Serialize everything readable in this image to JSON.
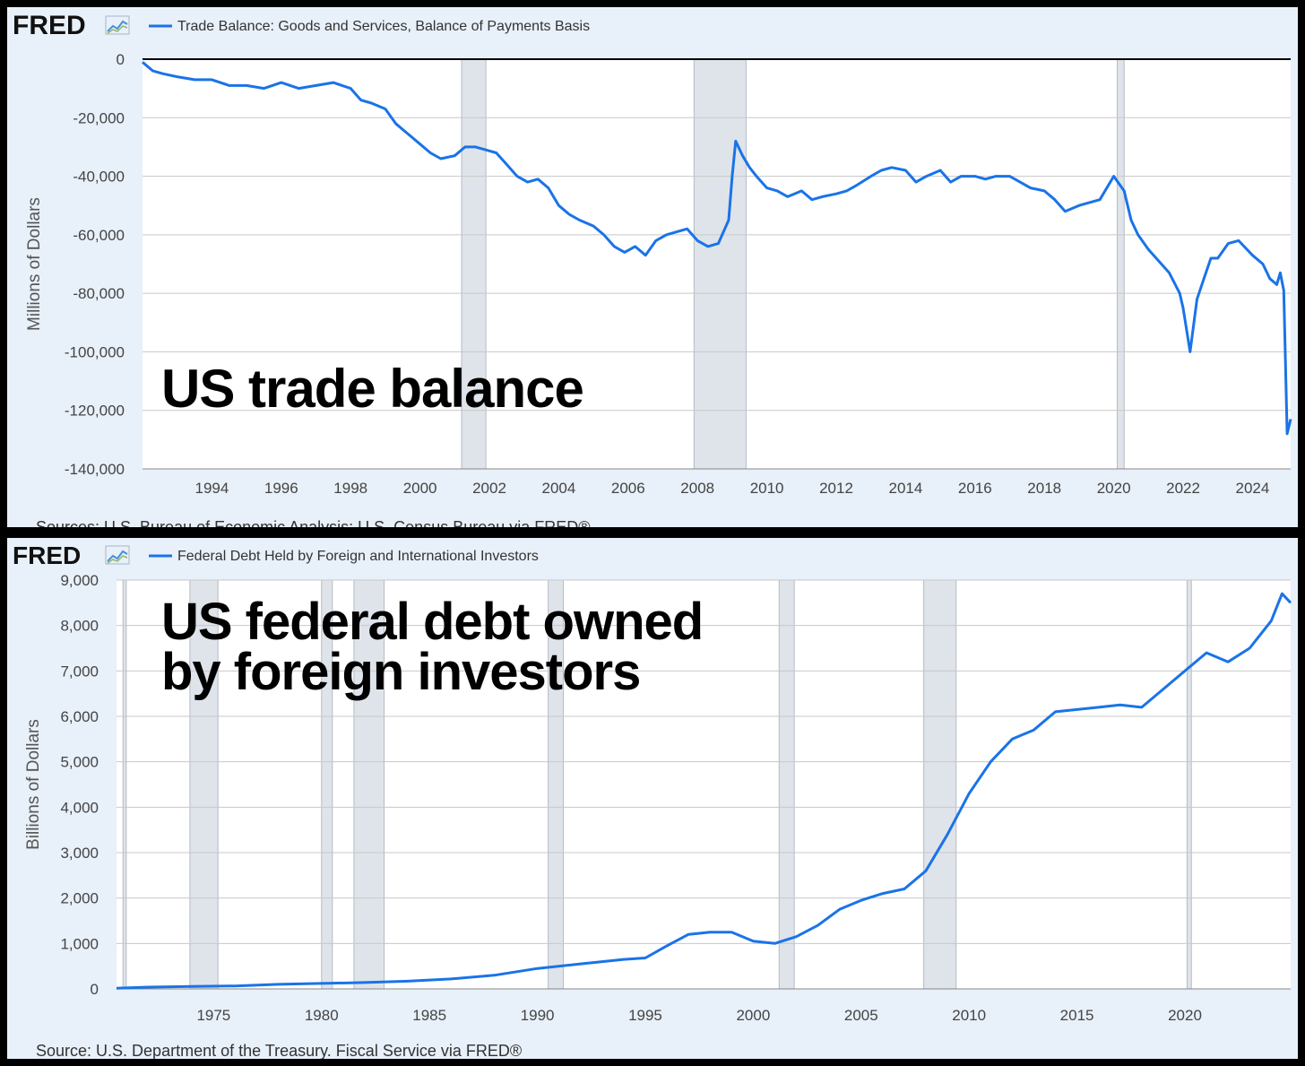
{
  "colors": {
    "series": "#1a73e8",
    "recession": "#dfe4ea",
    "grid": "#c8c8c8",
    "panel_bg": "#e8f0f9",
    "plot_bg": "#ffffff"
  },
  "icon": "fred-chart-logo-icon",
  "chart_data": [
    {
      "type": "line",
      "brand": "FRED",
      "title": "Trade Balance: Goods and Services, Balance of Payments Basis",
      "ylabel": "Millions of Dollars",
      "annotation": [
        "US trade balance"
      ],
      "source": "Sources: U.S. Bureau of Economic Analysis; U.S. Census Bureau via FRED®",
      "xlim": [
        1992,
        2025.1
      ],
      "ylim": [
        -140000,
        0
      ],
      "yticks": [
        0,
        -20000,
        -40000,
        -60000,
        -80000,
        -100000,
        -120000,
        -140000
      ],
      "ytick_labels": [
        "0",
        "-20,000",
        "-40,000",
        "-60,000",
        "-80,000",
        "-100,000",
        "-120,000",
        "-140,000"
      ],
      "xticks": [
        1994,
        1996,
        1998,
        2000,
        2002,
        2004,
        2006,
        2008,
        2010,
        2012,
        2014,
        2016,
        2018,
        2020,
        2022,
        2024
      ],
      "xtick_labels": [
        "1994",
        "1996",
        "1998",
        "2000",
        "2002",
        "2004",
        "2006",
        "2008",
        "2010",
        "2012",
        "2014",
        "2016",
        "2018",
        "2020",
        "2022",
        "2024"
      ],
      "recessions": [
        [
          2001.2,
          2001.9
        ],
        [
          2007.9,
          2009.4
        ],
        [
          2020.1,
          2020.3
        ]
      ],
      "series": [
        {
          "name": "Trade Balance: Goods and Services, Balance of Payments Basis",
          "x": [
            1992.0,
            1992.3,
            1992.6,
            1993.0,
            1993.5,
            1994.0,
            1994.5,
            1995.0,
            1995.5,
            1996.0,
            1996.5,
            1997.0,
            1997.5,
            1998.0,
            1998.3,
            1998.6,
            1999.0,
            1999.3,
            1999.6,
            2000.0,
            2000.3,
            2000.6,
            2001.0,
            2001.3,
            2001.6,
            2001.9,
            2002.2,
            2002.5,
            2002.8,
            2003.1,
            2003.4,
            2003.7,
            2004.0,
            2004.3,
            2004.6,
            2005.0,
            2005.3,
            2005.6,
            2005.9,
            2006.2,
            2006.5,
            2006.8,
            2007.1,
            2007.4,
            2007.7,
            2008.0,
            2008.3,
            2008.6,
            2008.9,
            2009.0,
            2009.1,
            2009.3,
            2009.5,
            2009.7,
            2010.0,
            2010.3,
            2010.6,
            2011.0,
            2011.3,
            2011.6,
            2012.0,
            2012.3,
            2012.6,
            2013.0,
            2013.3,
            2013.6,
            2014.0,
            2014.3,
            2014.6,
            2015.0,
            2015.3,
            2015.6,
            2016.0,
            2016.3,
            2016.6,
            2017.0,
            2017.3,
            2017.6,
            2018.0,
            2018.3,
            2018.6,
            2019.0,
            2019.3,
            2019.6,
            2020.0,
            2020.3,
            2020.5,
            2020.7,
            2021.0,
            2021.3,
            2021.6,
            2021.9,
            2022.0,
            2022.2,
            2022.4,
            2022.6,
            2022.8,
            2023.0,
            2023.3,
            2023.6,
            2024.0,
            2024.3,
            2024.5,
            2024.7,
            2024.8,
            2024.9,
            2025.0,
            2025.1
          ],
          "y": [
            -1000,
            -4000,
            -5000,
            -6000,
            -7000,
            -7000,
            -9000,
            -9000,
            -10000,
            -8000,
            -10000,
            -9000,
            -8000,
            -10000,
            -14000,
            -15000,
            -17000,
            -22000,
            -25000,
            -29000,
            -32000,
            -34000,
            -33000,
            -30000,
            -30000,
            -31000,
            -32000,
            -36000,
            -40000,
            -42000,
            -41000,
            -44000,
            -50000,
            -53000,
            -55000,
            -57000,
            -60000,
            -64000,
            -66000,
            -64000,
            -67000,
            -62000,
            -60000,
            -59000,
            -58000,
            -62000,
            -64000,
            -63000,
            -55000,
            -40000,
            -28000,
            -33000,
            -37000,
            -40000,
            -44000,
            -45000,
            -47000,
            -45000,
            -48000,
            -47000,
            -46000,
            -45000,
            -43000,
            -40000,
            -38000,
            -37000,
            -38000,
            -42000,
            -40000,
            -38000,
            -42000,
            -40000,
            -40000,
            -41000,
            -40000,
            -40000,
            -42000,
            -44000,
            -45000,
            -48000,
            -52000,
            -50000,
            -49000,
            -48000,
            -40000,
            -45000,
            -55000,
            -60000,
            -65000,
            -69000,
            -73000,
            -80000,
            -85000,
            -100000,
            -82000,
            -75000,
            -68000,
            -68000,
            -63000,
            -62000,
            -67000,
            -70000,
            -75000,
            -77000,
            -73000,
            -79000,
            -128000,
            -123000
          ]
        }
      ]
    },
    {
      "type": "line",
      "brand": "FRED",
      "title": "Federal Debt Held by Foreign and International Investors",
      "ylabel": "Billions of Dollars",
      "annotation": [
        "US federal debt owned",
        "by foreign investors"
      ],
      "source": "Source: U.S. Department of the Treasury. Fiscal Service via FRED®",
      "xlim": [
        1970.5,
        2024.9
      ],
      "ylim": [
        0,
        9000
      ],
      "yticks": [
        0,
        1000,
        2000,
        3000,
        4000,
        5000,
        6000,
        7000,
        8000,
        9000
      ],
      "ytick_labels": [
        "0",
        "1,000",
        "2,000",
        "3,000",
        "4,000",
        "5,000",
        "6,000",
        "7,000",
        "8,000",
        "9,000"
      ],
      "xticks": [
        1975,
        1980,
        1985,
        1990,
        1995,
        2000,
        2005,
        2010,
        2015,
        2020
      ],
      "xtick_labels": [
        "1975",
        "1980",
        "1985",
        "1990",
        "1995",
        "2000",
        "2005",
        "2010",
        "2015",
        "2020"
      ],
      "recessions": [
        [
          1970.8,
          1970.95
        ],
        [
          1973.9,
          1975.2
        ],
        [
          1980.0,
          1980.5
        ],
        [
          1981.5,
          1982.9
        ],
        [
          1990.5,
          1991.2
        ],
        [
          2001.2,
          2001.9
        ],
        [
          2007.9,
          2009.4
        ],
        [
          2020.1,
          2020.3
        ]
      ],
      "series": [
        {
          "name": "Federal Debt Held by Foreign and International Investors",
          "x": [
            1970.5,
            1972,
            1974,
            1976,
            1978,
            1980,
            1982,
            1984,
            1986,
            1988,
            1990,
            1992,
            1994,
            1995,
            1996,
            1997,
            1998,
            1999,
            2000,
            2001,
            2002,
            2003,
            2004,
            2005,
            2006,
            2007,
            2008,
            2009,
            2010,
            2011,
            2012,
            2013,
            2014,
            2015,
            2016,
            2017,
            2018,
            2019,
            2020,
            2021,
            2022,
            2023,
            2024,
            2024.5,
            2024.9
          ],
          "y": [
            15,
            40,
            55,
            65,
            100,
            120,
            140,
            170,
            220,
            300,
            450,
            550,
            650,
            680,
            950,
            1200,
            1250,
            1250,
            1050,
            1000,
            1150,
            1400,
            1750,
            1950,
            2100,
            2200,
            2600,
            3400,
            4300,
            5000,
            5500,
            5700,
            6100,
            6150,
            6200,
            6250,
            6200,
            6600,
            7000,
            7400,
            7200,
            7500,
            8100,
            8700,
            8500
          ]
        }
      ]
    }
  ]
}
